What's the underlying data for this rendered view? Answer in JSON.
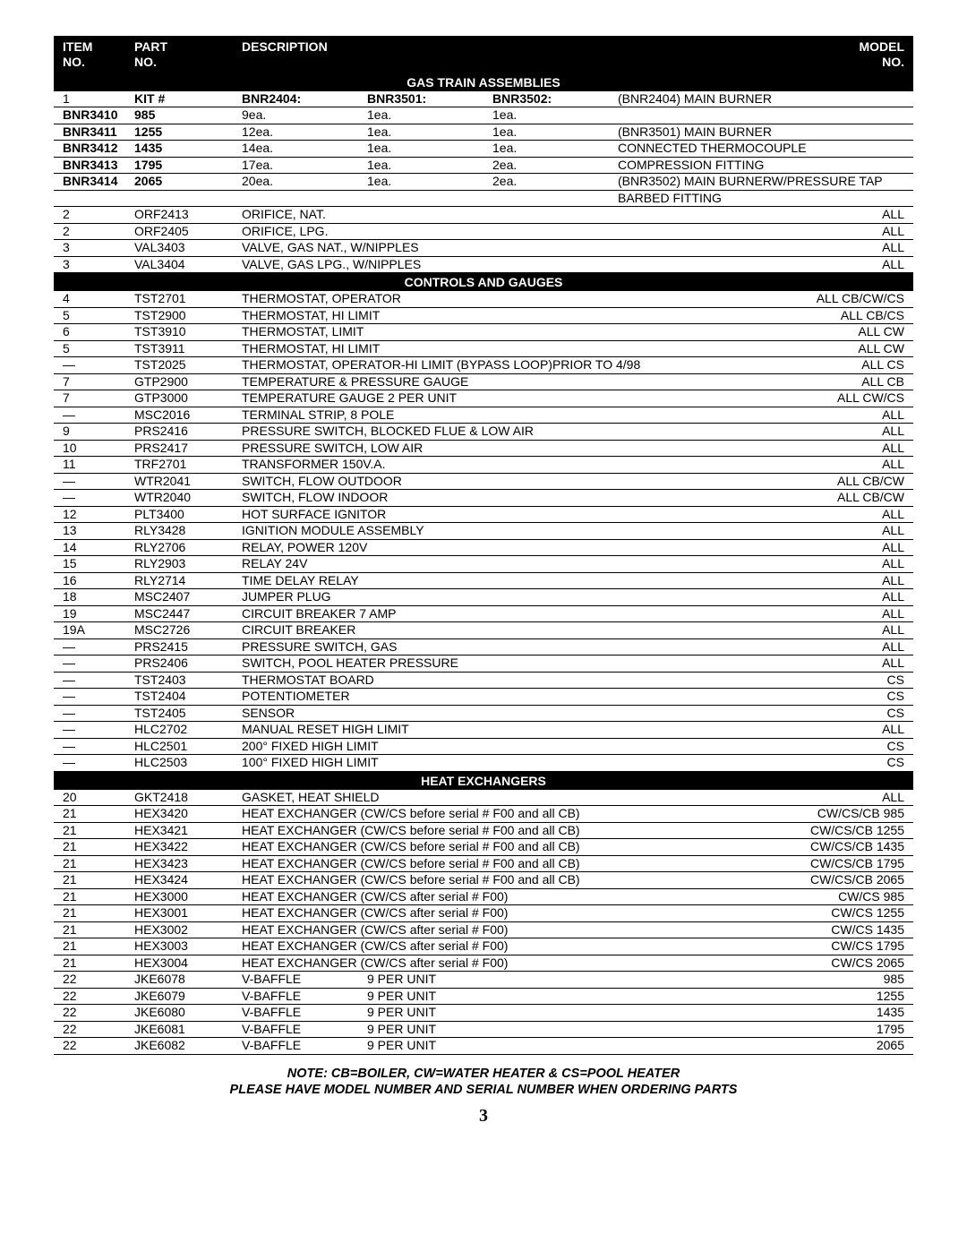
{
  "header": {
    "item_l1": "ITEM",
    "item_l2": "NO.",
    "part_l1": "PART",
    "part_l2": "NO.",
    "desc": "DESCRIPTION",
    "model_l1": "MODEL",
    "model_l2": "NO."
  },
  "sections": {
    "gas_train": "GAS TRAIN ASSEMBLIES",
    "controls": "CONTROLS AND GAUGES",
    "heat": "HEAT EXCHANGERS"
  },
  "kit_header": {
    "item": "1",
    "kit": "KIT #",
    "c1": "BNR2404:",
    "c2": "BNR3501:",
    "c3": "BNR3502:",
    "extra": "(BNR2404) MAIN BURNER"
  },
  "kit_rows": [
    {
      "a": "BNR3410",
      "b": "985",
      "c1": "9ea.",
      "c2": "1ea.",
      "c3": "1ea.",
      "extra": ""
    },
    {
      "a": "BNR3411",
      "b": "1255",
      "c1": "12ea.",
      "c2": "1ea.",
      "c3": "1ea.",
      "extra": "(BNR3501) MAIN BURNER"
    },
    {
      "a": "BNR3412",
      "b": "1435",
      "c1": "14ea.",
      "c2": "1ea.",
      "c3": "1ea.",
      "extra": "CONNECTED THERMOCOUPLE"
    },
    {
      "a": "BNR3413",
      "b": "1795",
      "c1": "17ea.",
      "c2": "1ea.",
      "c3": "2ea.",
      "extra": "COMPRESSION FITTING"
    },
    {
      "a": "BNR3414",
      "b": "2065",
      "c1": "20ea.",
      "c2": "1ea.",
      "c3": "2ea.",
      "extra": "(BNR3502) MAIN BURNERW/PRESSURE TAP"
    }
  ],
  "kit_trailing": {
    "a": "",
    "b": "",
    "c1": "",
    "c2": "",
    "c3": "",
    "extra": "BARBED FITTING"
  },
  "gas_rows": [
    {
      "item": "2",
      "part": "ORF2413",
      "desc": "ORIFICE, NAT.",
      "model": "ALL"
    },
    {
      "item": "2",
      "part": "ORF2405",
      "desc": "ORIFICE, LPG.",
      "model": "ALL"
    },
    {
      "item": "3",
      "part": "VAL3403",
      "desc": "VALVE, GAS NAT., W/NIPPLES",
      "model": "ALL"
    },
    {
      "item": "3",
      "part": "VAL3404",
      "desc": "VALVE, GAS LPG., W/NIPPLES",
      "model": "ALL"
    }
  ],
  "controls_rows": [
    {
      "item": "4",
      "part": "TST2701",
      "desc": "THERMOSTAT, OPERATOR",
      "model": "ALL CB/CW/CS"
    },
    {
      "item": "5",
      "part": "TST2900",
      "desc": "THERMOSTAT, HI LIMIT",
      "model": "ALL CB/CS"
    },
    {
      "item": "6",
      "part": "TST3910",
      "desc": "THERMOSTAT, LIMIT",
      "model": "ALL CW"
    },
    {
      "item": "5",
      "part": "TST3911",
      "desc": "THERMOSTAT, HI LIMIT",
      "model": "ALL CW"
    },
    {
      "item": "—",
      "part": "TST2025",
      "desc": "THERMOSTAT, OPERATOR-HI LIMIT (BYPASS LOOP)PRIOR TO 4/98",
      "model": "ALL CS"
    },
    {
      "item": "7",
      "part": "GTP2900",
      "desc": "TEMPERATURE & PRESSURE GAUGE",
      "model": "ALL CB"
    },
    {
      "item": "7",
      "part": "GTP3000",
      "desc": "TEMPERATURE GAUGE 2 PER UNIT",
      "model": "ALL CW/CS"
    },
    {
      "item": "—",
      "part": "MSC2016",
      "desc": "TERMINAL STRIP, 8 POLE",
      "model": "ALL"
    },
    {
      "item": "9",
      "part": "PRS2416",
      "desc": "PRESSURE SWITCH, BLOCKED FLUE & LOW AIR",
      "model": "ALL"
    },
    {
      "item": "10",
      "part": "PRS2417",
      "desc": "PRESSURE SWITCH, LOW AIR",
      "model": "ALL"
    },
    {
      "item": "11",
      "part": "TRF2701",
      "desc": "TRANSFORMER 150V.A.",
      "model": "ALL"
    },
    {
      "item": "—",
      "part": "WTR2041",
      "desc": "SWITCH, FLOW OUTDOOR",
      "model": "ALL CB/CW"
    },
    {
      "item": "—",
      "part": "WTR2040",
      "desc": "SWITCH, FLOW INDOOR",
      "model": "ALL CB/CW"
    },
    {
      "item": "12",
      "part": "PLT3400",
      "desc": "HOT SURFACE IGNITOR",
      "model": "ALL"
    },
    {
      "item": "13",
      "part": "RLY3428",
      "desc": "IGNITION MODULE ASSEMBLY",
      "model": "ALL"
    },
    {
      "item": "14",
      "part": "RLY2706",
      "desc": "RELAY, POWER 120V",
      "model": "ALL"
    },
    {
      "item": "15",
      "part": "RLY2903",
      "desc": "RELAY 24V",
      "model": "ALL"
    },
    {
      "item": "16",
      "part": "RLY2714",
      "desc": "TIME DELAY RELAY",
      "model": "ALL"
    },
    {
      "item": "18",
      "part": "MSC2407",
      "desc": "JUMPER PLUG",
      "model": "ALL"
    },
    {
      "item": "19",
      "part": "MSC2447",
      "desc": "CIRCUIT BREAKER 7 AMP",
      "model": "ALL"
    },
    {
      "item": "19A",
      "part": "MSC2726",
      "desc": "CIRCUIT BREAKER",
      "model": "ALL"
    },
    {
      "item": "—",
      "part": "PRS2415",
      "desc": "PRESSURE SWITCH, GAS",
      "model": "ALL"
    },
    {
      "item": "—",
      "part": "PRS2406",
      "desc": "SWITCH, POOL HEATER PRESSURE",
      "model": "ALL"
    },
    {
      "item": "—",
      "part": "TST2403",
      "desc": "THERMOSTAT BOARD",
      "model": "CS"
    },
    {
      "item": "—",
      "part": "TST2404",
      "desc": "POTENTIOMETER",
      "model": "CS"
    },
    {
      "item": "—",
      "part": "TST2405",
      "desc": "SENSOR",
      "model": "CS"
    },
    {
      "item": "—",
      "part": "HLC2702",
      "desc": "MANUAL RESET HIGH LIMIT",
      "model": "ALL"
    },
    {
      "item": "—",
      "part": "HLC2501",
      "desc": "200° FIXED HIGH LIMIT",
      "model": "CS"
    },
    {
      "item": "—",
      "part": "HLC2503",
      "desc": "100° FIXED HIGH LIMIT",
      "model": "CS"
    }
  ],
  "heat_rows": [
    {
      "item": "20",
      "part": "GKT2418",
      "desc": "GASKET, HEAT SHIELD",
      "model": "ALL"
    },
    {
      "item": "21",
      "part": "HEX3420",
      "desc": "HEAT EXCHANGER (CW/CS before serial # F00 and all CB)",
      "model": "CW/CS/CB 985"
    },
    {
      "item": "21",
      "part": "HEX3421",
      "desc": "HEAT EXCHANGER (CW/CS before serial # F00 and all CB)",
      "model": "CW/CS/CB 1255"
    },
    {
      "item": "21",
      "part": "HEX3422",
      "desc": "HEAT EXCHANGER (CW/CS before serial # F00 and all CB)",
      "model": "CW/CS/CB 1435"
    },
    {
      "item": "21",
      "part": "HEX3423",
      "desc": "HEAT EXCHANGER (CW/CS before serial # F00 and all CB)",
      "model": "CW/CS/CB 1795"
    },
    {
      "item": "21",
      "part": "HEX3424",
      "desc": "HEAT EXCHANGER (CW/CS before serial # F00 and all CB)",
      "model": "CW/CS/CB 2065"
    },
    {
      "item": "21",
      "part": "HEX3000",
      "desc": "HEAT EXCHANGER (CW/CS after serial # F00)",
      "model": "CW/CS  985"
    },
    {
      "item": "21",
      "part": "HEX3001",
      "desc": "HEAT EXCHANGER (CW/CS after serial # F00)",
      "model": "CW/CS 1255"
    },
    {
      "item": "21",
      "part": "HEX3002",
      "desc": "HEAT EXCHANGER (CW/CS after serial # F00)",
      "model": "CW/CS 1435"
    },
    {
      "item": "21",
      "part": "HEX3003",
      "desc": "HEAT EXCHANGER (CW/CS after serial # F00)",
      "model": "CW/CS 1795"
    },
    {
      "item": "21",
      "part": "HEX3004",
      "desc": "HEAT EXCHANGER (CW/CS after serial # F00)",
      "model": "CW/CS 2065"
    }
  ],
  "baffle_rows": [
    {
      "item": "22",
      "part": "JKE6078",
      "d1": "V-BAFFLE",
      "d2": "9 PER UNIT",
      "model": "985"
    },
    {
      "item": "22",
      "part": "JKE6079",
      "d1": "V-BAFFLE",
      "d2": "9 PER UNIT",
      "model": "1255"
    },
    {
      "item": "22",
      "part": "JKE6080",
      "d1": "V-BAFFLE",
      "d2": "9 PER UNIT",
      "model": "1435"
    },
    {
      "item": "22",
      "part": "JKE6081",
      "d1": "V-BAFFLE",
      "d2": "9 PER UNIT",
      "model": "1795"
    },
    {
      "item": "22",
      "part": "JKE6082",
      "d1": "V-BAFFLE",
      "d2": "9 PER UNIT",
      "model": "2065"
    }
  ],
  "footer": {
    "line1": "NOTE: CB=BOILER, CW=WATER HEATER & CS=POOL HEATER",
    "line2": "PLEASE HAVE MODEL NUMBER AND SERIAL NUMBER WHEN ORDERING PARTS"
  },
  "page_number": "3"
}
